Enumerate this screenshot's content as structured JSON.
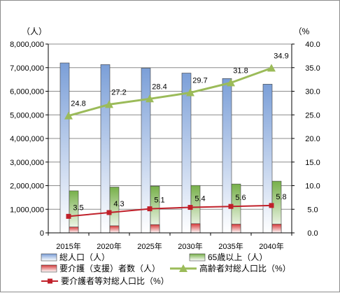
{
  "chart_data": {
    "type": "bar",
    "categories": [
      "2015年",
      "2020年",
      "2025年",
      "2030年",
      "2035年",
      "2040年"
    ],
    "y_left": {
      "unit": "（人）",
      "min": 0,
      "max": 8000000,
      "step": 1000000,
      "tick_labels": [
        "0",
        "1,000,000",
        "2,000,000",
        "3,000,000",
        "4,000,000",
        "5,000,000",
        "6,000,000",
        "7,000,000",
        "8,000,000"
      ]
    },
    "y_right": {
      "unit": "（%",
      "min": 0,
      "max": 40,
      "step": 5,
      "tick_labels": [
        "0.0",
        "5.0",
        "10.0",
        "15.0",
        "20.0",
        "25.0",
        "30.0",
        "35.0",
        "40.0"
      ]
    },
    "grid": true,
    "legend_position": "bottom",
    "series": [
      {
        "name": "総人口（人）",
        "type": "bar",
        "axis": "left",
        "color": "#7b9fd8",
        "values": [
          7200000,
          7130000,
          6980000,
          6770000,
          6540000,
          6300000
        ]
      },
      {
        "name": "65歳以上（人）",
        "type": "bar",
        "axis": "left",
        "color": "#77b04a",
        "values": [
          1780000,
          1940000,
          1980000,
          2010000,
          2070000,
          2190000
        ]
      },
      {
        "name": "要介護（支援）者数（人）",
        "type": "bar",
        "axis": "left",
        "color": "#d63b3b",
        "values": [
          250000,
          300000,
          350000,
          390000,
          370000,
          370000
        ]
      },
      {
        "name": "高齢者対総人口比（%）",
        "type": "line",
        "axis": "right",
        "color": "#9bbb59",
        "marker": "triangle",
        "values": [
          24.8,
          27.2,
          28.4,
          29.7,
          31.8,
          34.9
        ],
        "labels": [
          "24.8",
          "27.2",
          "28.4",
          "29.7",
          "31.8",
          "34.9"
        ]
      },
      {
        "name": "要介護者等対総人口比（%）",
        "type": "line",
        "axis": "right",
        "color": "#c0202a",
        "marker": "square",
        "values": [
          3.5,
          4.3,
          5.1,
          5.4,
          5.6,
          5.8
        ],
        "labels": [
          "3.5",
          "4.3",
          "5.1",
          "5.4",
          "5.6",
          "5.8"
        ]
      }
    ]
  }
}
